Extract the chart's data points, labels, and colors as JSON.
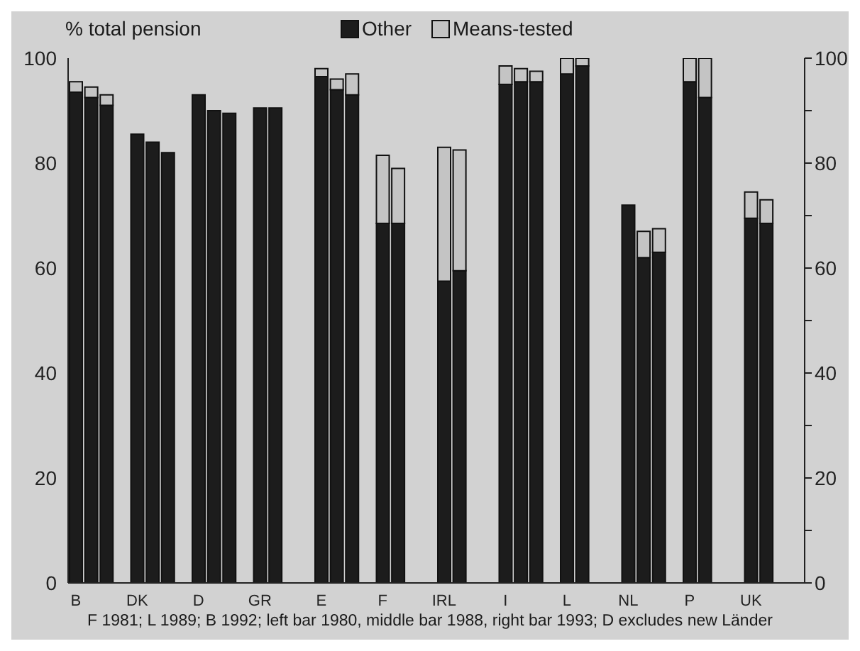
{
  "chart_data": {
    "type": "bar",
    "stacked": true,
    "ylabel": "% total pension",
    "annotations": [
      "F 1981; L 1989; B 1992; left bar 1980, middle bar 1988, right bar 1993; D excludes new Länder"
    ],
    "categories": [
      "B",
      null,
      null,
      null,
      "DK",
      null,
      null,
      null,
      "D",
      null,
      null,
      null,
      "GR",
      null,
      null,
      null,
      "E",
      null,
      null,
      null,
      "F",
      null,
      null,
      null,
      "IRL",
      null,
      null,
      null,
      "I",
      null,
      null,
      null,
      "L",
      null,
      null,
      null,
      "NL",
      null,
      null,
      null,
      "P",
      null,
      null,
      null,
      "UK",
      null,
      null,
      null
    ],
    "series": [
      {
        "name": "Other",
        "color": "#1c1c1c",
        "values": [
          93.5,
          92.5,
          91,
          null,
          85.5,
          84,
          82,
          null,
          93,
          90,
          89.5,
          null,
          90.5,
          90.5,
          null,
          null,
          96.5,
          94,
          93,
          null,
          68.5,
          68.5,
          null,
          null,
          57.5,
          59.5,
          null,
          null,
          95,
          95.5,
          95.5,
          null,
          97,
          98.5,
          null,
          null,
          72,
          62,
          63,
          null,
          95.5,
          92.5,
          null,
          null,
          69.5,
          68.5,
          null,
          null
        ]
      },
      {
        "name": "Means-tested",
        "color": "#c4c4c4",
        "values": [
          2,
          2,
          2,
          null,
          null,
          null,
          null,
          null,
          null,
          null,
          null,
          null,
          null,
          null,
          null,
          null,
          1.5,
          2,
          4,
          null,
          13,
          10.5,
          null,
          null,
          25.5,
          23,
          null,
          null,
          3.5,
          2.5,
          2,
          null,
          3,
          1.5,
          null,
          null,
          null,
          5,
          4.5,
          null,
          4.5,
          7.5,
          null,
          null,
          5,
          4.5,
          null,
          null
        ]
      }
    ],
    "ylim": [
      0,
      100
    ],
    "yticks": [
      0,
      20,
      40,
      60,
      80,
      100
    ],
    "y2lim": [
      0,
      100
    ],
    "y2ticks": [
      0,
      {
        "value": 10,
        "label": null
      },
      20,
      {
        "value": 30,
        "label": null
      },
      40,
      {
        "value": 50,
        "label": null
      },
      60,
      {
        "value": 70,
        "label": null
      },
      80,
      {
        "value": 90,
        "label": null
      },
      100
    ],
    "legend": "top"
  }
}
